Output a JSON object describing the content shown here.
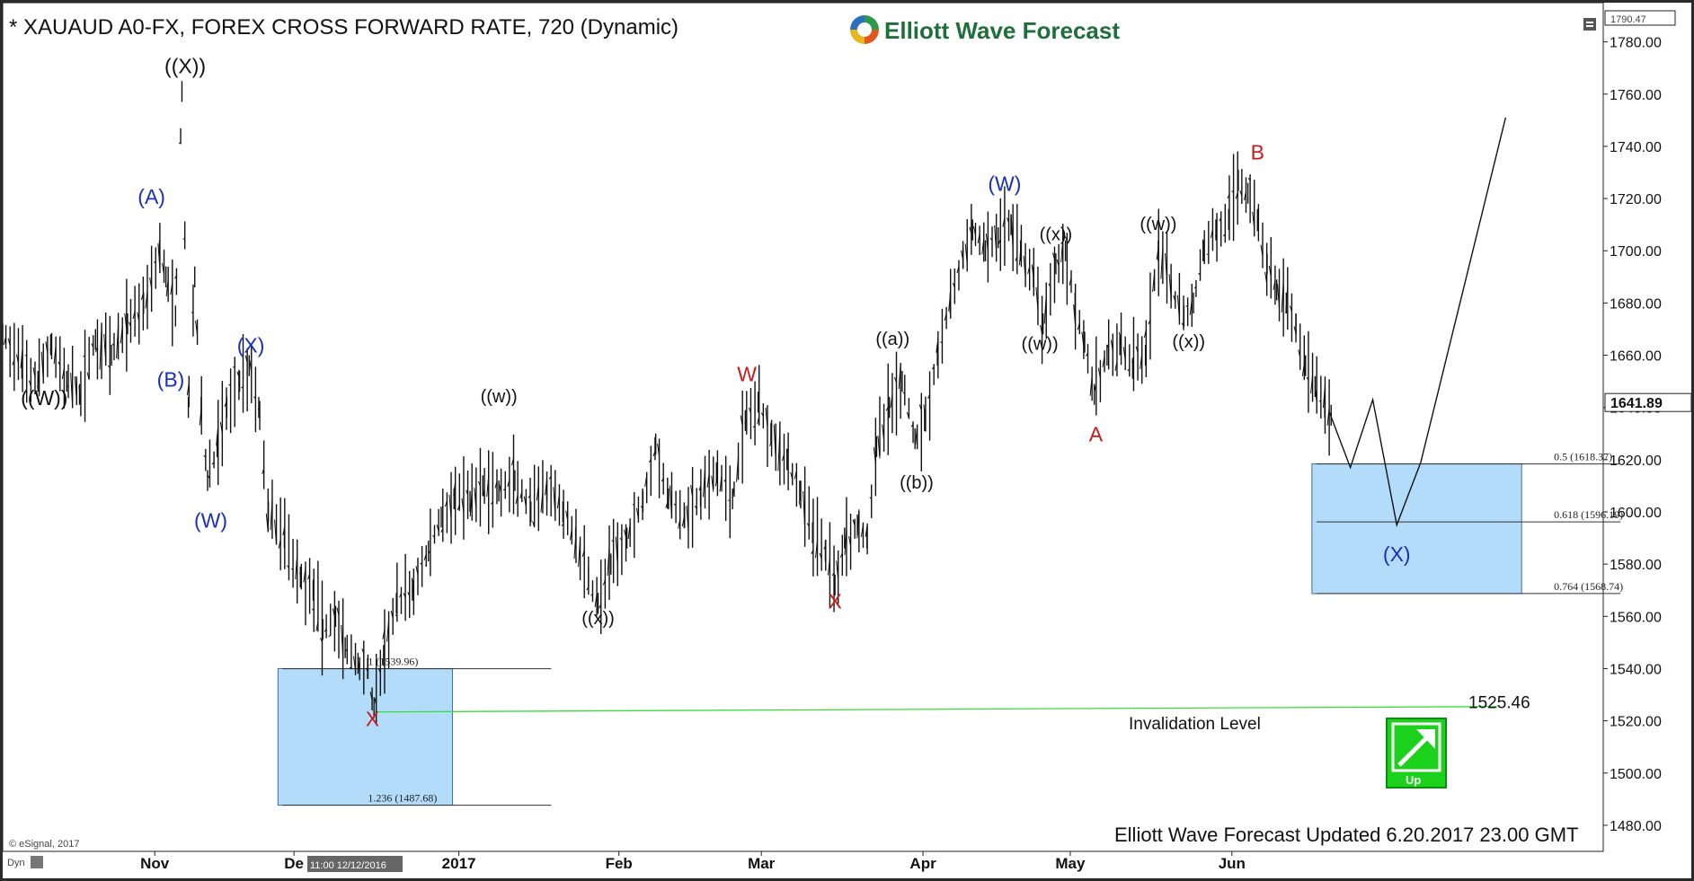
{
  "header": {
    "title": "* XAUAUD A0-FX, FOREX CROSS FORWARD RATE, 720 (Dynamic)",
    "logo_text": "Elliott Wave Forecast"
  },
  "footer": {
    "updated": "Elliott Wave Forecast Updated 6.20.2017 23.00 GMT",
    "copyright": "© eSignal, 2017",
    "dyn_label": "Dyn",
    "cursor_time": "11:00 12/12/2016"
  },
  "badge": {
    "label": "Up",
    "color": "#1bd11b"
  },
  "price_boxes": {
    "top": "1790.47",
    "last": "1641.89"
  },
  "invalidation": {
    "value": "1525.46",
    "label": "Invalidation Level",
    "color": "#3ddc3d"
  },
  "colors": {
    "blue_box": "#b3dcfb",
    "blue_box_border": "#3a6fa8",
    "wave_blue": "#1a2fb8",
    "wave_red": "#cc1a1a",
    "wave_black": "#111111"
  },
  "chart_data": {
    "type": "bar",
    "ylim": [
      1470,
      1795
    ],
    "y_ticks": [
      1480,
      1500,
      1520,
      1540,
      1560,
      1580,
      1600,
      1620,
      1640,
      1660,
      1680,
      1700,
      1720,
      1740,
      1760,
      1780
    ],
    "y_tick_labels": [
      "1480.00",
      "1500.00",
      "1520.00",
      "1540.00",
      "1560.00",
      "1580.00",
      "1600.00",
      "1620.00",
      "1640.00",
      "1660.00",
      "1680.00",
      "1700.00",
      "1720.00",
      "1740.00",
      "1760.00",
      "1780.00"
    ],
    "x_ticks": [
      {
        "label": "Nov",
        "t": 0.095
      },
      {
        "label": "De",
        "t": 0.182
      },
      {
        "label": "2017",
        "t": 0.285
      },
      {
        "label": "Feb",
        "t": 0.385
      },
      {
        "label": "Mar",
        "t": 0.474
      },
      {
        "label": "Apr",
        "t": 0.575
      },
      {
        "label": "May",
        "t": 0.667
      },
      {
        "label": "Jun",
        "t": 0.768
      }
    ],
    "price_path": [
      [
        0.0,
        1668
      ],
      [
        0.012,
        1655
      ],
      [
        0.022,
        1650
      ],
      [
        0.03,
        1664
      ],
      [
        0.04,
        1650
      ],
      [
        0.048,
        1645
      ],
      [
        0.058,
        1666
      ],
      [
        0.068,
        1660
      ],
      [
        0.078,
        1672
      ],
      [
        0.088,
        1680
      ],
      [
        0.098,
        1700
      ],
      [
        0.102,
        1690
      ],
      [
        0.108,
        1675
      ],
      [
        0.112,
        1761
      ],
      [
        0.116,
        1640
      ],
      [
        0.12,
        1690
      ],
      [
        0.124,
        1640
      ],
      [
        0.128,
        1612
      ],
      [
        0.134,
        1625
      ],
      [
        0.14,
        1640
      ],
      [
        0.148,
        1650
      ],
      [
        0.154,
        1656
      ],
      [
        0.16,
        1640
      ],
      [
        0.166,
        1600
      ],
      [
        0.176,
        1590
      ],
      [
        0.186,
        1575
      ],
      [
        0.194,
        1570
      ],
      [
        0.2,
        1555
      ],
      [
        0.208,
        1560
      ],
      [
        0.214,
        1548
      ],
      [
        0.222,
        1542
      ],
      [
        0.228,
        1540
      ],
      [
        0.232,
        1525
      ],
      [
        0.238,
        1545
      ],
      [
        0.246,
        1565
      ],
      [
        0.256,
        1570
      ],
      [
        0.266,
        1585
      ],
      [
        0.274,
        1598
      ],
      [
        0.282,
        1605
      ],
      [
        0.292,
        1604
      ],
      [
        0.3,
        1610
      ],
      [
        0.31,
        1608
      ],
      [
        0.32,
        1612
      ],
      [
        0.33,
        1600
      ],
      [
        0.34,
        1608
      ],
      [
        0.35,
        1600
      ],
      [
        0.358,
        1590
      ],
      [
        0.366,
        1575
      ],
      [
        0.372,
        1565
      ],
      [
        0.38,
        1580
      ],
      [
        0.39,
        1590
      ],
      [
        0.4,
        1604
      ],
      [
        0.408,
        1626
      ],
      [
        0.416,
        1605
      ],
      [
        0.426,
        1598
      ],
      [
        0.436,
        1606
      ],
      [
        0.446,
        1615
      ],
      [
        0.456,
        1605
      ],
      [
        0.464,
        1635
      ],
      [
        0.472,
        1642
      ],
      [
        0.48,
        1630
      ],
      [
        0.49,
        1620
      ],
      [
        0.498,
        1608
      ],
      [
        0.506,
        1592
      ],
      [
        0.514,
        1585
      ],
      [
        0.52,
        1572
      ],
      [
        0.526,
        1590
      ],
      [
        0.534,
        1595
      ],
      [
        0.54,
        1590
      ],
      [
        0.546,
        1625
      ],
      [
        0.554,
        1640
      ],
      [
        0.562,
        1650
      ],
      [
        0.57,
        1628
      ],
      [
        0.576,
        1635
      ],
      [
        0.584,
        1660
      ],
      [
        0.592,
        1680
      ],
      [
        0.6,
        1697
      ],
      [
        0.606,
        1708
      ],
      [
        0.614,
        1700
      ],
      [
        0.622,
        1705
      ],
      [
        0.63,
        1710
      ],
      [
        0.636,
        1700
      ],
      [
        0.644,
        1690
      ],
      [
        0.65,
        1672
      ],
      [
        0.658,
        1695
      ],
      [
        0.664,
        1700
      ],
      [
        0.67,
        1680
      ],
      [
        0.676,
        1665
      ],
      [
        0.682,
        1645
      ],
      [
        0.69,
        1660
      ],
      [
        0.698,
        1664
      ],
      [
        0.706,
        1655
      ],
      [
        0.714,
        1660
      ],
      [
        0.722,
        1700
      ],
      [
        0.73,
        1685
      ],
      [
        0.738,
        1675
      ],
      [
        0.744,
        1680
      ],
      [
        0.75,
        1700
      ],
      [
        0.758,
        1708
      ],
      [
        0.766,
        1712
      ],
      [
        0.772,
        1727
      ],
      [
        0.778,
        1722
      ],
      [
        0.784,
        1712
      ],
      [
        0.79,
        1695
      ],
      [
        0.796,
        1685
      ],
      [
        0.802,
        1680
      ],
      [
        0.808,
        1672
      ],
      [
        0.814,
        1656
      ],
      [
        0.82,
        1648
      ],
      [
        0.826,
        1640
      ],
      [
        0.83,
        1637
      ]
    ],
    "projection": [
      [
        0.829,
        1638
      ],
      [
        0.842,
        1617
      ],
      [
        0.856,
        1643
      ],
      [
        0.871,
        1595
      ],
      [
        0.886,
        1619
      ],
      [
        0.939,
        1751
      ]
    ],
    "fib_boxes": [
      {
        "t0": 0.172,
        "t1": 0.281,
        "top": 1540,
        "bottom": 1487.7,
        "labels": [
          {
            "text": "1 (1539.96)",
            "price": 1539.96
          },
          {
            "text": "1.236 (1487.68)",
            "price": 1487.68
          }
        ]
      },
      {
        "t0": 0.818,
        "t1": 0.949,
        "top": 1618.4,
        "bottom": 1568.7,
        "labels": [
          {
            "text": "0.5 (1618.37)",
            "price": 1618.37
          },
          {
            "text": "0.618 (1596.19)",
            "price": 1596.19
          },
          {
            "text": "0.764 (1568.74)",
            "price": 1568.74
          }
        ]
      }
    ],
    "invalidation_line": {
      "t0": 0.232,
      "t1": 0.934,
      "price": 1525.46
    },
    "wave_labels": [
      {
        "text": "((W))",
        "t": 0.026,
        "price": 1641,
        "color": "black",
        "size": "lg"
      },
      {
        "text": "((X))",
        "t": 0.114,
        "price": 1768,
        "color": "black",
        "size": "lg"
      },
      {
        "text": "(A)",
        "t": 0.093,
        "price": 1718,
        "color": "blue",
        "size": "lg"
      },
      {
        "text": "(B)",
        "t": 0.105,
        "price": 1648,
        "color": "blue",
        "size": "lg"
      },
      {
        "text": "(X)",
        "t": 0.155,
        "price": 1661,
        "color": "blue",
        "size": "lg"
      },
      {
        "text": "(W)",
        "t": 0.13,
        "price": 1594,
        "color": "blue",
        "size": "lg"
      },
      {
        "text": "X",
        "t": 0.231,
        "price": 1518,
        "color": "red",
        "size": "lg"
      },
      {
        "text": "((w))",
        "t": 0.31,
        "price": 1642,
        "color": "black",
        "size": "sm"
      },
      {
        "text": "((x))",
        "t": 0.372,
        "price": 1557,
        "color": "black",
        "size": "sm"
      },
      {
        "text": "W",
        "t": 0.465,
        "price": 1650,
        "color": "red",
        "size": "lg"
      },
      {
        "text": "X",
        "t": 0.52,
        "price": 1563,
        "color": "red",
        "size": "lg"
      },
      {
        "text": "((a))",
        "t": 0.556,
        "price": 1664,
        "color": "black",
        "size": "sm"
      },
      {
        "text": "((b))",
        "t": 0.571,
        "price": 1609,
        "color": "black",
        "size": "sm"
      },
      {
        "text": "(W)",
        "t": 0.626,
        "price": 1723,
        "color": "blue",
        "size": "lg"
      },
      {
        "text": "((x))",
        "t": 0.658,
        "price": 1704,
        "color": "black",
        "size": "sm"
      },
      {
        "text": "((w))",
        "t": 0.648,
        "price": 1662,
        "color": "black",
        "size": "sm"
      },
      {
        "text": "A",
        "t": 0.683,
        "price": 1627,
        "color": "red",
        "size": "lg"
      },
      {
        "text": "((w))",
        "t": 0.722,
        "price": 1708,
        "color": "black",
        "size": "sm"
      },
      {
        "text": "((x))",
        "t": 0.741,
        "price": 1663,
        "color": "black",
        "size": "sm"
      },
      {
        "text": "B",
        "t": 0.784,
        "price": 1735,
        "color": "red",
        "size": "lg"
      },
      {
        "text": "(X)",
        "t": 0.871,
        "price": 1581,
        "color": "blue",
        "size": "lg"
      }
    ]
  }
}
